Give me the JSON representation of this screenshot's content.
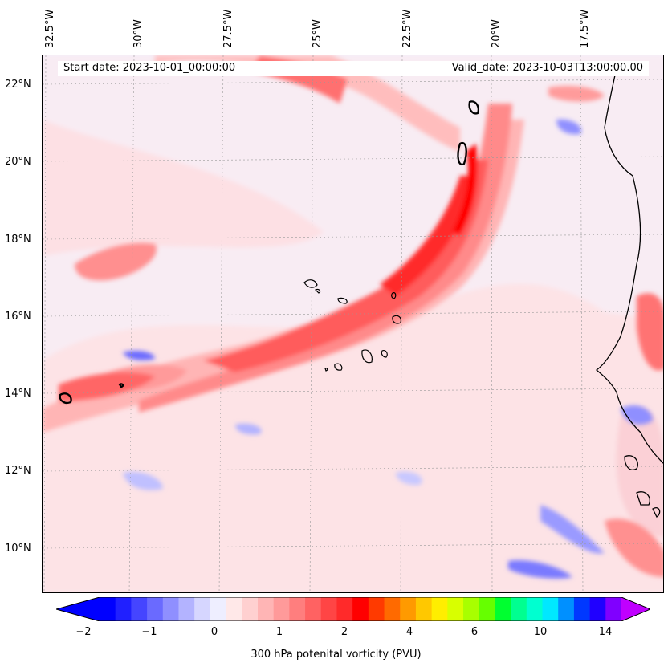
{
  "header": {
    "start_date": "Start date: 2023-10-01_00:00:00",
    "valid_date": "Valid_date: 2023-10-03T13:00:00.00"
  },
  "longitude_labels": [
    "32.5°W",
    "30°W",
    "27.5°W",
    "25°W",
    "22.5°W",
    "20°W",
    "17.5°W"
  ],
  "latitude_labels": [
    "22°N",
    "20°N",
    "18°N",
    "16°N",
    "14°N",
    "12°N",
    "10°N"
  ],
  "colorbar": {
    "tick_labels": [
      "−2",
      "−1",
      "0",
      "1",
      "2",
      "4",
      "6",
      "10",
      "14"
    ],
    "label": "300 hPa potenital vorticity (PVU)",
    "colors": [
      "#0000ff",
      "#2020ff",
      "#4545ff",
      "#6a6aff",
      "#8f8fff",
      "#b3b3ff",
      "#d6d6ff",
      "#eeeeff",
      "#ffe8e8",
      "#ffd0d0",
      "#ffb5b5",
      "#ff9a9a",
      "#ff7e7e",
      "#ff6262",
      "#ff4545",
      "#ff2a2a",
      "#ff0000",
      "#ff3a00",
      "#ff6a00",
      "#ff9a00",
      "#ffc800",
      "#ffee00",
      "#d8ff00",
      "#a8ff00",
      "#66ff00",
      "#00ff30",
      "#00ff90",
      "#00ffd0",
      "#00e8ff",
      "#0090ff",
      "#0038ff",
      "#2000ff",
      "#8000ff"
    ],
    "extend_low_color": "#0000ff",
    "extend_high_color": "#c000ff"
  }
}
